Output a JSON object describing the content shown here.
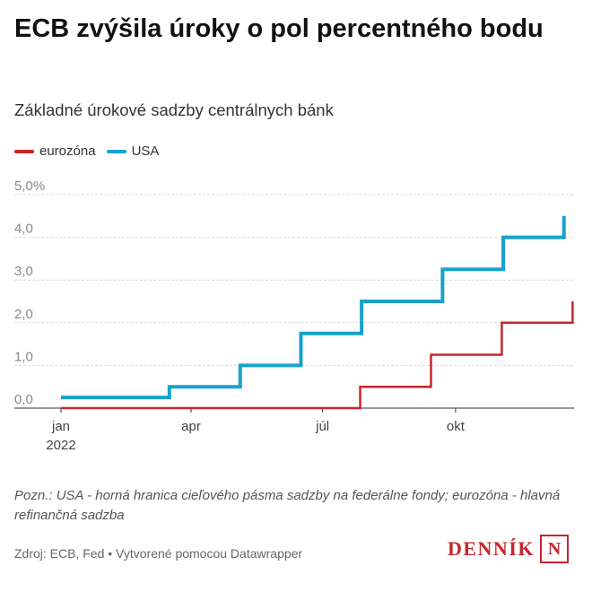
{
  "header": {
    "title": "ECB zvýšila úroky o pol percentného bodu",
    "subtitle": "Základné úrokové sadzby centrálnych bánk"
  },
  "legend": {
    "eurozone": "eurozóna",
    "usa": "USA"
  },
  "colors": {
    "eurozone": "#c8252c",
    "usa": "#18a1cd",
    "gridline": "#d9d9d9",
    "brand": "#c8252c"
  },
  "chart_data": {
    "type": "line",
    "step": true,
    "x_axis_type": "date",
    "xlim": [
      "2022-01-01",
      "2022-12-22"
    ],
    "ylim": [
      0,
      5
    ],
    "y_ticks": [
      {
        "value": 0,
        "label": "0,0"
      },
      {
        "value": 1,
        "label": "1,0"
      },
      {
        "value": 2,
        "label": "2,0"
      },
      {
        "value": 3,
        "label": "3,0"
      },
      {
        "value": 4,
        "label": "4,0"
      },
      {
        "value": 5,
        "label": "5,0%"
      }
    ],
    "x_ticks": [
      {
        "date": "2022-01-01",
        "label": "jan",
        "sublabel": "2022"
      },
      {
        "date": "2022-04-01",
        "label": "apr"
      },
      {
        "date": "2022-07-01",
        "label": "júl"
      },
      {
        "date": "2022-10-01",
        "label": "okt"
      }
    ],
    "grid": true,
    "legend_position": "top-left",
    "series": [
      {
        "name": "eurozóna",
        "color_key": "eurozone",
        "points": [
          {
            "date": "2022-01-01",
            "value": 0
          },
          {
            "date": "2022-07-27",
            "value": 0.5
          },
          {
            "date": "2022-09-14",
            "value": 1.25
          },
          {
            "date": "2022-11-02",
            "value": 2.0
          },
          {
            "date": "2022-12-21",
            "value": 2.5
          }
        ]
      },
      {
        "name": "USA",
        "color_key": "usa",
        "points": [
          {
            "date": "2022-01-01",
            "value": 0.25
          },
          {
            "date": "2022-03-17",
            "value": 0.5
          },
          {
            "date": "2022-05-05",
            "value": 1.0
          },
          {
            "date": "2022-06-16",
            "value": 1.75
          },
          {
            "date": "2022-07-28",
            "value": 2.5
          },
          {
            "date": "2022-09-22",
            "value": 3.25
          },
          {
            "date": "2022-11-03",
            "value": 4.0
          },
          {
            "date": "2022-12-15",
            "value": 4.5
          }
        ]
      }
    ]
  },
  "footer": {
    "note": "Pozn.: USA - horná hranica cieľového pásma sadzby na federálne fondy; eurozóna - hlavná refinančná sadzba",
    "source": "Zdroj: ECB, Fed • Vytvorené pomocou Datawrapper",
    "logo_text": "DENNÍK",
    "logo_letter": "N"
  }
}
